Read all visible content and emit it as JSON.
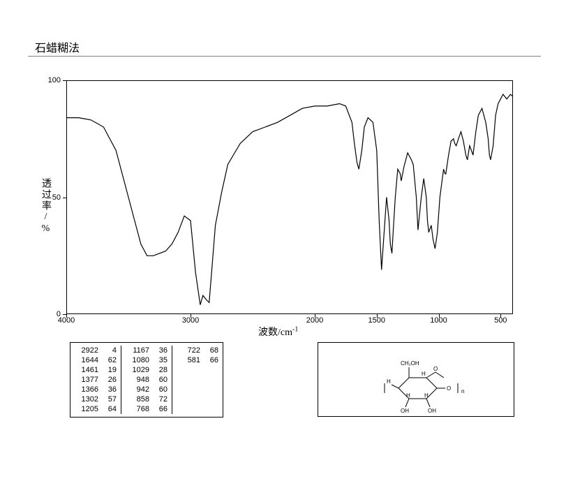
{
  "title": "石蜡糊法",
  "chart": {
    "type": "line",
    "xlabel": "波数/cm",
    "xlabel_sup": "-1",
    "ylabel": "透过率/%",
    "xlim": [
      4000,
      400
    ],
    "ylim": [
      0,
      100
    ],
    "xticks": [
      4000,
      3000,
      2000,
      1500,
      1000,
      500
    ],
    "yticks": [
      0,
      50,
      100
    ],
    "background_color": "#ffffff",
    "line_color": "#000000",
    "line_width": 1.2,
    "axis_color": "#000000",
    "tick_fontsize": 11,
    "label_fontsize": 14,
    "spectrum": [
      [
        4000,
        84
      ],
      [
        3900,
        84
      ],
      [
        3800,
        83
      ],
      [
        3700,
        80
      ],
      [
        3600,
        70
      ],
      [
        3500,
        50
      ],
      [
        3400,
        30
      ],
      [
        3350,
        25
      ],
      [
        3300,
        25
      ],
      [
        3200,
        27
      ],
      [
        3150,
        30
      ],
      [
        3100,
        35
      ],
      [
        3050,
        42
      ],
      [
        3000,
        40
      ],
      [
        2960,
        18
      ],
      [
        2922,
        4
      ],
      [
        2900,
        8
      ],
      [
        2870,
        6
      ],
      [
        2850,
        5
      ],
      [
        2800,
        38
      ],
      [
        2750,
        52
      ],
      [
        2700,
        64
      ],
      [
        2600,
        73
      ],
      [
        2500,
        78
      ],
      [
        2400,
        80
      ],
      [
        2300,
        82
      ],
      [
        2200,
        85
      ],
      [
        2100,
        88
      ],
      [
        2000,
        89
      ],
      [
        1900,
        89
      ],
      [
        1800,
        90
      ],
      [
        1750,
        89
      ],
      [
        1700,
        82
      ],
      [
        1680,
        73
      ],
      [
        1660,
        65
      ],
      [
        1644,
        62
      ],
      [
        1620,
        70
      ],
      [
        1600,
        80
      ],
      [
        1570,
        84
      ],
      [
        1530,
        82
      ],
      [
        1500,
        70
      ],
      [
        1480,
        40
      ],
      [
        1461,
        19
      ],
      [
        1440,
        35
      ],
      [
        1420,
        50
      ],
      [
        1400,
        40
      ],
      [
        1390,
        30
      ],
      [
        1377,
        26
      ],
      [
        1366,
        36
      ],
      [
        1350,
        50
      ],
      [
        1330,
        62
      ],
      [
        1310,
        60
      ],
      [
        1302,
        57
      ],
      [
        1280,
        63
      ],
      [
        1250,
        69
      ],
      [
        1220,
        66
      ],
      [
        1205,
        64
      ],
      [
        1180,
        50
      ],
      [
        1167,
        36
      ],
      [
        1140,
        50
      ],
      [
        1120,
        58
      ],
      [
        1100,
        50
      ],
      [
        1090,
        40
      ],
      [
        1080,
        35
      ],
      [
        1060,
        38
      ],
      [
        1045,
        32
      ],
      [
        1029,
        28
      ],
      [
        1010,
        35
      ],
      [
        990,
        50
      ],
      [
        970,
        58
      ],
      [
        960,
        62
      ],
      [
        948,
        60
      ],
      [
        942,
        60
      ],
      [
        920,
        68
      ],
      [
        900,
        74
      ],
      [
        880,
        75
      ],
      [
        870,
        73
      ],
      [
        858,
        72
      ],
      [
        840,
        75
      ],
      [
        820,
        78
      ],
      [
        800,
        74
      ],
      [
        780,
        68
      ],
      [
        768,
        66
      ],
      [
        750,
        72
      ],
      [
        735,
        70
      ],
      [
        722,
        68
      ],
      [
        700,
        78
      ],
      [
        680,
        85
      ],
      [
        650,
        88
      ],
      [
        620,
        82
      ],
      [
        600,
        75
      ],
      [
        590,
        68
      ],
      [
        581,
        66
      ],
      [
        560,
        72
      ],
      [
        540,
        85
      ],
      [
        520,
        90
      ],
      [
        500,
        92
      ],
      [
        480,
        94
      ],
      [
        450,
        92
      ],
      [
        420,
        94
      ],
      [
        400,
        93
      ]
    ]
  },
  "peaks_table": {
    "columns": [
      [
        [
          2922,
          4
        ],
        [
          1644,
          62
        ],
        [
          1461,
          19
        ],
        [
          1377,
          26
        ],
        [
          1366,
          36
        ],
        [
          1302,
          57
        ],
        [
          1205,
          64
        ]
      ],
      [
        [
          1167,
          36
        ],
        [
          1080,
          35
        ],
        [
          1029,
          28
        ],
        [
          948,
          60
        ],
        [
          942,
          60
        ],
        [
          858,
          72
        ],
        [
          768,
          66
        ]
      ],
      [
        [
          722,
          68
        ],
        [
          581,
          66
        ]
      ]
    ],
    "fontsize": 11,
    "border_color": "#000000"
  },
  "structure": {
    "labels": {
      "ch2oh": "CH₂OH",
      "h": "H",
      "oh": "OH",
      "o": "O",
      "n": "n"
    },
    "line_color": "#000000",
    "line_width": 1,
    "fontsize": 8
  }
}
